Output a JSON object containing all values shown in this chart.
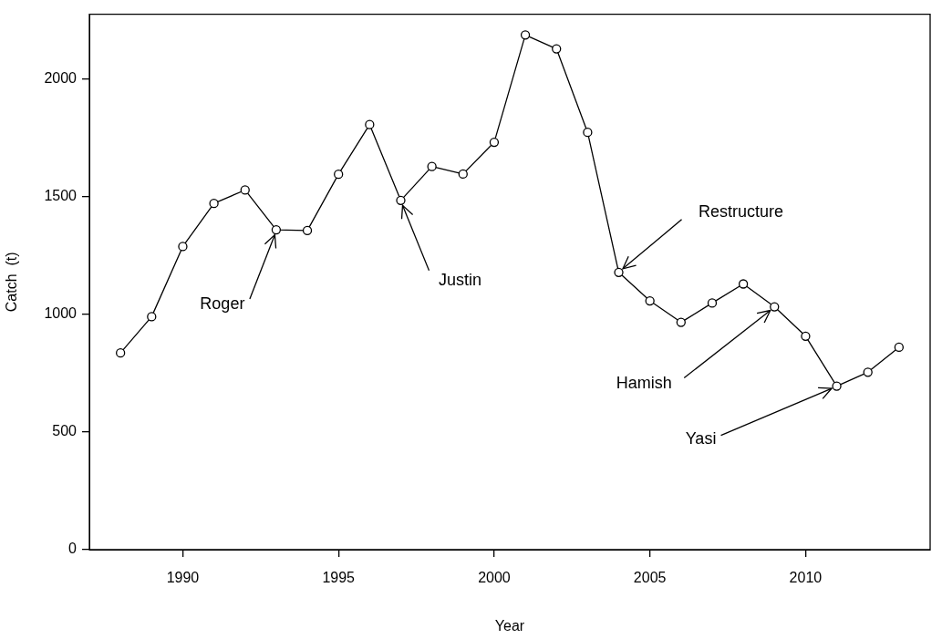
{
  "chart_data": {
    "type": "line",
    "xlabel": "Year",
    "ylabel": "Catch  (t)",
    "x": [
      1988,
      1989,
      1990,
      1991,
      1992,
      1993,
      1994,
      1995,
      1996,
      1997,
      1998,
      1999,
      2000,
      2001,
      2002,
      2003,
      2004,
      2005,
      2006,
      2007,
      2008,
      2009,
      2010,
      2011,
      2012,
      2013
    ],
    "series": [
      {
        "color": "#000000",
        "values": [
          836,
          990,
          1288,
          1471,
          1528,
          1359,
          1356,
          1595,
          1806,
          1484,
          1628,
          1596,
          1731,
          2187,
          2128,
          1773,
          1178,
          1057,
          966,
          1048,
          1129,
          1032,
          907,
          695,
          754,
          860
        ]
      }
    ],
    "xlim": [
      1987,
      2014
    ],
    "xticks": [
      1990,
      1995,
      2000,
      2005,
      2010
    ],
    "ylim": [
      0,
      2275
    ],
    "yticks": [
      0,
      500,
      1000,
      1500,
      2000
    ],
    "marker": "circle",
    "line_style": "solid",
    "legend": false,
    "annotations": [
      {
        "text": "Roger",
        "x": 1993,
        "y": 1359
      },
      {
        "text": "Justin",
        "x": 1997,
        "y": 1484
      },
      {
        "text": "Restructure",
        "x": 2004,
        "y": 1178
      },
      {
        "text": "Hamish",
        "x": 2009,
        "y": 1032
      },
      {
        "text": "Yasi",
        "x": 2011,
        "y": 695
      }
    ]
  }
}
